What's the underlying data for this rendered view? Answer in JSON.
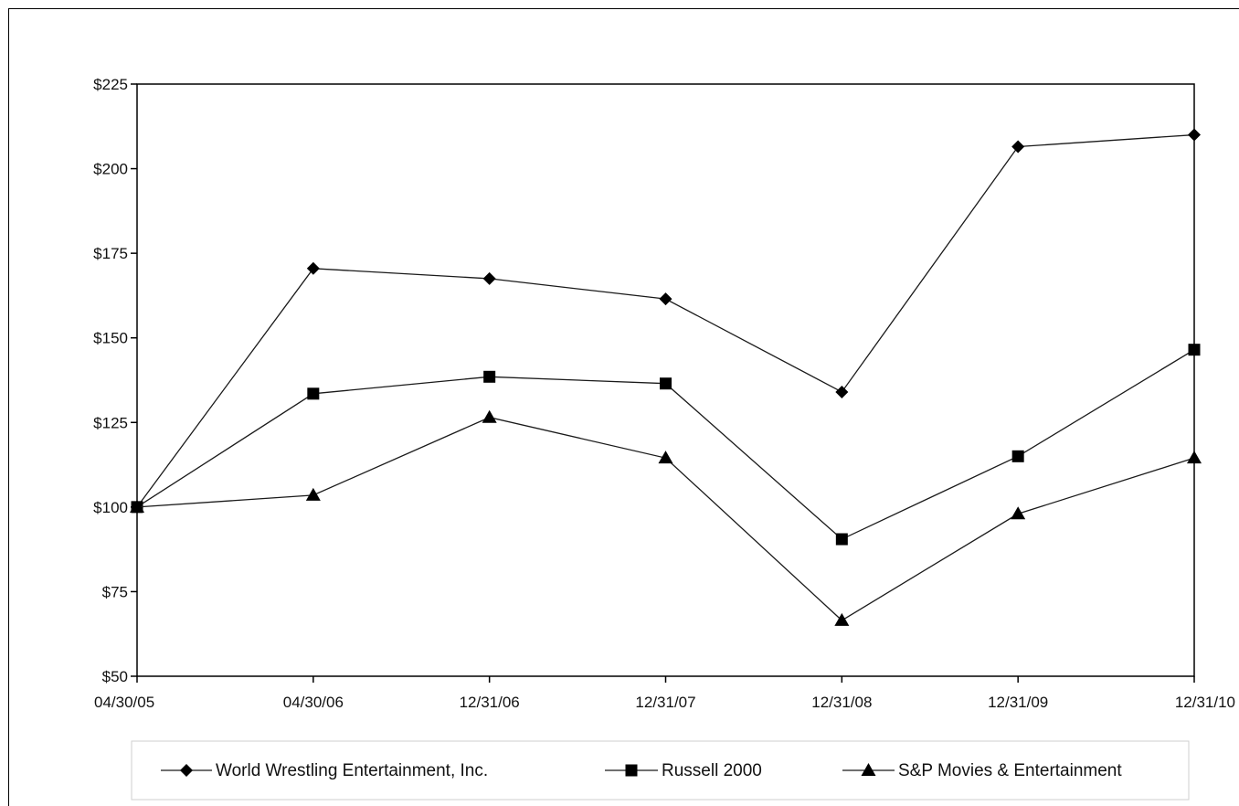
{
  "chart_data": {
    "type": "line",
    "title": "",
    "xlabel": "",
    "ylabel": "",
    "categories": [
      "04/30/05",
      "04/30/06",
      "12/31/06",
      "12/31/07",
      "12/31/08",
      "12/31/09",
      "12/31/10"
    ],
    "y_ticks": [
      "$50",
      "$75",
      "$100",
      "$125",
      "$150",
      "$175",
      "$200",
      "$225"
    ],
    "y_tick_values": [
      50,
      75,
      100,
      125,
      150,
      175,
      200,
      225
    ],
    "ylim": [
      50,
      225
    ],
    "grid": false,
    "legend_position": "bottom",
    "series": [
      {
        "name": "World Wrestling Entertainment, Inc.",
        "marker": "diamond",
        "values": [
          100,
          170.5,
          167.5,
          161.5,
          134,
          206.5,
          210
        ]
      },
      {
        "name": "Russell 2000",
        "marker": "square",
        "values": [
          100,
          133.5,
          138.5,
          136.5,
          90.5,
          115,
          146.5
        ]
      },
      {
        "name": "S&P Movies & Entertainment",
        "marker": "triangle",
        "values": [
          100,
          103.5,
          126.5,
          114.5,
          66.5,
          98,
          114.5
        ]
      }
    ],
    "colors": {
      "line": "#1a1a1a",
      "marker": "#000000",
      "axis": "#000000"
    }
  }
}
